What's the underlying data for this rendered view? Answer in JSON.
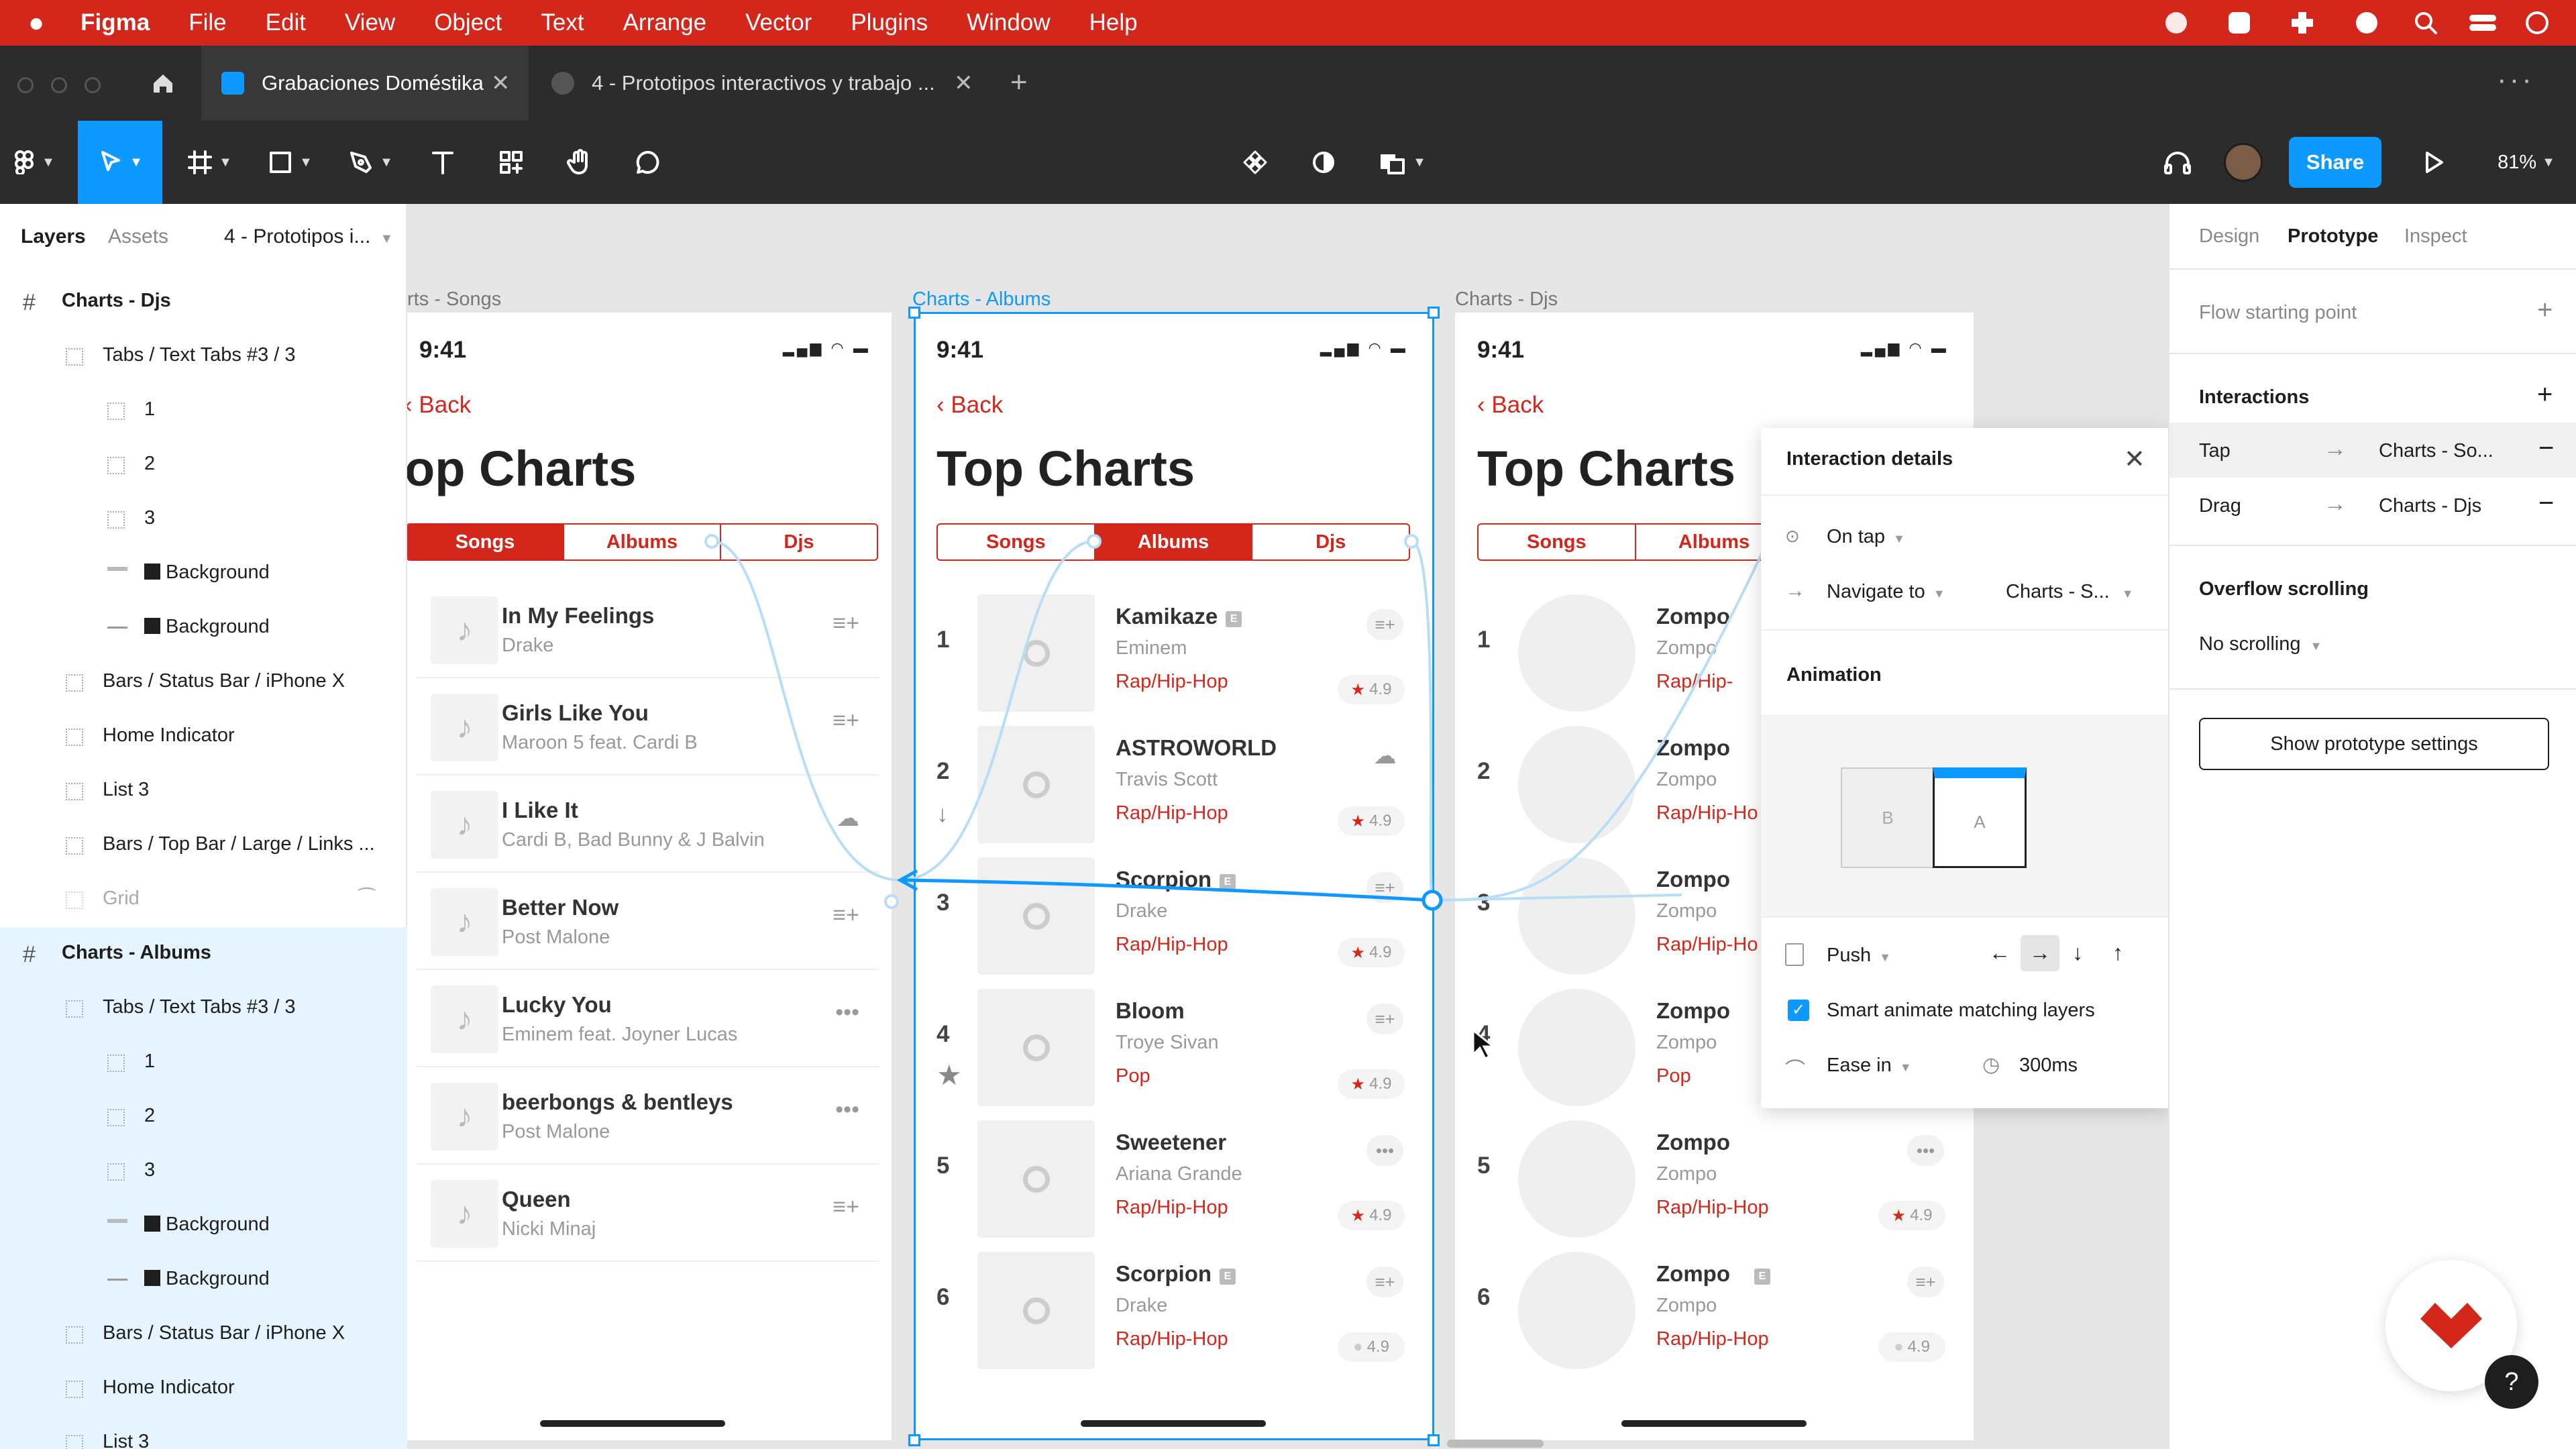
{
  "menubar": {
    "app_name": "Figma",
    "items": [
      "File",
      "Edit",
      "View",
      "Object",
      "Text",
      "Arrange",
      "Vector",
      "Plugins",
      "Window",
      "Help"
    ]
  },
  "tabs": {
    "active": "Grabaciones Doméstika",
    "second": "4 - Prototipos interactivos y trabajo ..."
  },
  "toolbar": {
    "share_label": "Share",
    "zoom": "81%"
  },
  "left_panel": {
    "tab_layers": "Layers",
    "tab_assets": "Assets",
    "page_selector": "4 - Prototipos i...",
    "layers": [
      "Charts - Djs",
      "Tabs / Text Tabs #3 / 3",
      "1",
      "2",
      "3",
      "Background",
      "Background",
      "Bars / Status Bar / iPhone X",
      "Home Indicator",
      "List 3",
      "Bars / Top Bar / Large / Links ...",
      "Grid",
      "Charts - Albums",
      "Tabs / Text Tabs #3 / 3",
      "1",
      "2",
      "3",
      "Background",
      "Background",
      "Bars / Status Bar / iPhone X",
      "Home Indicator",
      "List 3"
    ]
  },
  "canvas": {
    "frame_labels": {
      "songs": "rts - Songs",
      "albums": "Charts - Albums",
      "djs": "Charts - Djs"
    },
    "status_time": "9:41",
    "back_label": "Back",
    "title": "Top Charts",
    "songs_title": "op Charts",
    "seg": {
      "songs": "Songs",
      "albums": "Albums",
      "djs": "Djs"
    },
    "songs": [
      {
        "title": "In My Feelings",
        "artist": "Drake"
      },
      {
        "title": "Girls Like You",
        "artist": "Maroon 5 feat. Cardi B"
      },
      {
        "title": "I Like It",
        "artist": "Cardi B, Bad Bunny & J Balvin"
      },
      {
        "title": "Better Now",
        "artist": "Post Malone"
      },
      {
        "title": "Lucky You",
        "artist": "Eminem feat. Joyner Lucas"
      },
      {
        "title": "beerbongs & bentleys",
        "artist": "Post Malone"
      },
      {
        "title": "Queen",
        "artist": "Nicki Minaj"
      }
    ],
    "albums": [
      {
        "rank": "1",
        "title": "Kamikaze",
        "artist": "Eminem",
        "genre": "Rap/Hip-Hop",
        "rating": "4.9"
      },
      {
        "rank": "2",
        "title": "ASTROWORLD",
        "artist": "Travis Scott",
        "genre": "Rap/Hip-Hop",
        "rating": "4.9"
      },
      {
        "rank": "3",
        "title": "Scorpion",
        "artist": "Drake",
        "genre": "Rap/Hip-Hop",
        "rating": "4.9"
      },
      {
        "rank": "4",
        "title": "Bloom",
        "artist": "Troye Sivan",
        "genre": "Pop",
        "rating": "4.9"
      },
      {
        "rank": "5",
        "title": "Sweetener",
        "artist": "Ariana Grande",
        "genre": "Rap/Hip-Hop",
        "rating": "4.9"
      },
      {
        "rank": "6",
        "title": "Scorpion",
        "artist": "Drake",
        "genre": "Rap/Hip-Hop",
        "rating": "4.9"
      }
    ],
    "djs": [
      {
        "rank": "1",
        "title": "Zompo",
        "artist": "Zompo",
        "genre": "Rap/Hip-"
      },
      {
        "rank": "2",
        "title": "Zompo",
        "artist": "Zompo",
        "genre": "Rap/Hip-Ho"
      },
      {
        "rank": "3",
        "title": "Zompo",
        "artist": "Zompo",
        "genre": "Rap/Hip-Ho"
      },
      {
        "rank": "4",
        "title": "Zompo",
        "artist": "Zompo",
        "genre": "Pop"
      },
      {
        "rank": "5",
        "title": "Zompo",
        "artist": "Zompo",
        "genre": "Rap/Hip-Hop",
        "rating": "4.9"
      },
      {
        "rank": "6",
        "title": "Zompo",
        "artist": "Zompo",
        "genre": "Rap/Hip-Hop",
        "rating": "4.9"
      }
    ]
  },
  "popup": {
    "title": "Interaction details",
    "trigger": "On tap",
    "action": "Navigate to",
    "destination": "Charts - S...",
    "animation_heading": "Animation",
    "preview_b": "B",
    "preview_a": "A",
    "transition": "Push",
    "smart_animate": "Smart animate matching layers",
    "easing": "Ease in",
    "duration": "300ms"
  },
  "right_panel": {
    "tabs": [
      "Design",
      "Prototype",
      "Inspect"
    ],
    "flow_starting_point": "Flow starting point",
    "interactions_heading": "Interactions",
    "interactions": [
      {
        "trigger": "Tap",
        "destination": "Charts - So..."
      },
      {
        "trigger": "Drag",
        "destination": "Charts - Djs"
      }
    ],
    "overflow_heading": "Overflow scrolling",
    "overflow_value": "No scrolling",
    "settings_button": "Show prototype settings"
  },
  "colors": {
    "accent_red": "#d3271b",
    "figma_blue": "#0d99ff",
    "toolbar_dark": "#2c2c2c",
    "selection_light": "#e5f4ff"
  }
}
